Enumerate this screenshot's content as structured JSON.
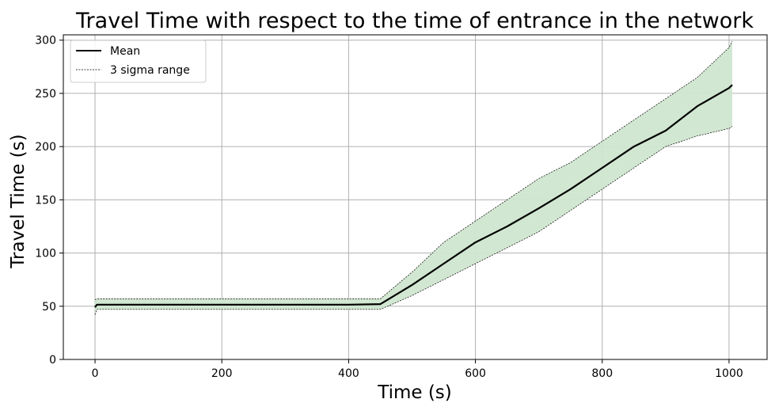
{
  "chart_data": {
    "type": "line",
    "title": "Travel Time with respect to the time of entrance in the network",
    "xlabel": "Time (s)",
    "ylabel": "Travel Time (s)",
    "xlim": [
      -50,
      1060
    ],
    "ylim": [
      0,
      305
    ],
    "xticks": [
      0,
      200,
      400,
      600,
      800,
      1000
    ],
    "yticks": [
      0,
      50,
      100,
      150,
      200,
      250,
      300
    ],
    "grid": true,
    "legend_position": "upper-left",
    "colors": {
      "mean": "#000000",
      "band_fill": "#cfe6cf",
      "band_edge": "#000000",
      "grid": "#b0b0b0"
    },
    "series": [
      {
        "name": "Mean",
        "style": "solid",
        "x": [
          0,
          3,
          50,
          100,
          150,
          200,
          250,
          300,
          350,
          400,
          450,
          500,
          550,
          600,
          650,
          700,
          750,
          800,
          850,
          900,
          950,
          1000,
          1005
        ],
        "y": [
          49,
          51.5,
          51.5,
          51.5,
          51.5,
          51.5,
          51.5,
          51.5,
          51.5,
          51.5,
          52,
          70,
          90,
          110,
          125,
          142,
          160,
          180,
          200,
          215,
          238,
          255,
          258
        ]
      },
      {
        "name": "3 sigma range",
        "style": "dashed",
        "x": [
          0,
          3,
          50,
          100,
          150,
          200,
          250,
          300,
          350,
          400,
          450,
          500,
          550,
          600,
          650,
          700,
          750,
          800,
          850,
          900,
          950,
          1000,
          1005
        ],
        "lower": [
          42,
          47,
          47,
          47,
          47,
          47,
          47,
          47,
          47,
          47,
          47,
          60,
          75,
          90,
          105,
          120,
          140,
          160,
          180,
          200,
          210,
          217,
          219
        ],
        "upper": [
          56,
          57,
          57,
          57,
          57,
          57,
          57,
          57,
          57,
          57,
          57,
          82,
          110,
          130,
          150,
          170,
          185,
          205,
          225,
          245,
          265,
          293,
          299
        ]
      }
    ]
  }
}
